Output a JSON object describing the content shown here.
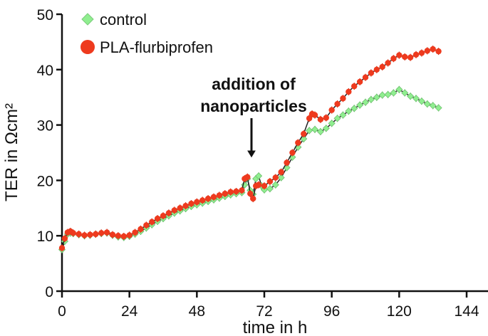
{
  "chart_data": {
    "type": "line",
    "xlabel": "time in h",
    "ylabel": "TER in Ωcm²",
    "xlim": [
      0,
      144
    ],
    "ylim": [
      0,
      50
    ],
    "x_ticks": [
      0,
      24,
      48,
      72,
      96,
      120,
      144
    ],
    "y_ticks": [
      0,
      10,
      20,
      30,
      40,
      50
    ],
    "grid": false,
    "legend_position": "top-left",
    "annotation": {
      "lines": [
        "addition of",
        "nanoparticles"
      ],
      "points_to_x": 66,
      "points_to_y": 24
    },
    "series": [
      {
        "name": "control",
        "marker": "diamond",
        "color": "#90ee90",
        "points": [
          [
            0,
            7.5
          ],
          [
            1,
            9
          ],
          [
            2,
            10.3
          ],
          [
            3,
            10.5
          ],
          [
            4,
            10.4
          ],
          [
            6,
            10.2
          ],
          [
            8,
            10.0
          ],
          [
            10,
            10.1
          ],
          [
            12,
            10.3
          ],
          [
            14,
            10.4
          ],
          [
            16,
            10.5
          ],
          [
            18,
            10.1
          ],
          [
            20,
            9.8
          ],
          [
            22,
            9.7
          ],
          [
            24,
            9.9
          ],
          [
            26,
            10.3
          ],
          [
            28,
            10.8
          ],
          [
            30,
            11.4
          ],
          [
            32,
            12.0
          ],
          [
            34,
            12.6
          ],
          [
            36,
            13.1
          ],
          [
            38,
            13.6
          ],
          [
            40,
            14.1
          ],
          [
            42,
            14.5
          ],
          [
            44,
            14.9
          ],
          [
            46,
            15.3
          ],
          [
            48,
            15.6
          ],
          [
            50,
            15.9
          ],
          [
            52,
            16.2
          ],
          [
            54,
            16.5
          ],
          [
            56,
            16.8
          ],
          [
            58,
            17.1
          ],
          [
            60,
            17.4
          ],
          [
            62,
            17.6
          ],
          [
            64,
            17.8
          ],
          [
            65,
            19.2
          ],
          [
            66,
            20.3
          ],
          [
            67,
            18.2
          ],
          [
            68,
            17.5
          ],
          [
            69,
            20.3
          ],
          [
            70,
            20.8
          ],
          [
            71,
            19.0
          ],
          [
            72,
            18.3
          ],
          [
            74,
            18.5
          ],
          [
            76,
            19.2
          ],
          [
            78,
            20.5
          ],
          [
            80,
            22.3
          ],
          [
            82,
            24.2
          ],
          [
            84,
            26.0
          ],
          [
            86,
            27.5
          ],
          [
            88,
            29.0
          ],
          [
            90,
            29.2
          ],
          [
            92,
            28.8
          ],
          [
            94,
            29.4
          ],
          [
            96,
            30.3
          ],
          [
            98,
            31.2
          ],
          [
            100,
            31.8
          ],
          [
            102,
            32.5
          ],
          [
            104,
            33.0
          ],
          [
            106,
            33.6
          ],
          [
            108,
            34.1
          ],
          [
            110,
            34.6
          ],
          [
            112,
            35.0
          ],
          [
            114,
            35.4
          ],
          [
            116,
            35.5
          ],
          [
            118,
            35.8
          ],
          [
            120,
            36.4
          ],
          [
            122,
            35.8
          ],
          [
            124,
            35.2
          ],
          [
            126,
            34.8
          ],
          [
            128,
            34.3
          ],
          [
            130,
            33.8
          ],
          [
            132,
            33.5
          ],
          [
            134,
            33.1
          ]
        ]
      },
      {
        "name": "PLA-flurbiprofen",
        "marker": "circle",
        "color": "#ee3a1e",
        "points": [
          [
            0,
            7.8
          ],
          [
            1,
            9.5
          ],
          [
            2,
            10.6
          ],
          [
            3,
            10.8
          ],
          [
            4,
            10.5
          ],
          [
            6,
            10.3
          ],
          [
            8,
            10.1
          ],
          [
            10,
            10.2
          ],
          [
            12,
            10.3
          ],
          [
            14,
            10.5
          ],
          [
            16,
            10.6
          ],
          [
            18,
            10.2
          ],
          [
            20,
            10.0
          ],
          [
            22,
            9.9
          ],
          [
            24,
            10.1
          ],
          [
            26,
            10.6
          ],
          [
            28,
            11.2
          ],
          [
            30,
            11.9
          ],
          [
            32,
            12.5
          ],
          [
            34,
            13.1
          ],
          [
            36,
            13.6
          ],
          [
            38,
            14.1
          ],
          [
            40,
            14.6
          ],
          [
            42,
            15.0
          ],
          [
            44,
            15.4
          ],
          [
            46,
            15.8
          ],
          [
            48,
            16.1
          ],
          [
            50,
            16.4
          ],
          [
            52,
            16.7
          ],
          [
            54,
            17.0
          ],
          [
            56,
            17.3
          ],
          [
            58,
            17.6
          ],
          [
            60,
            17.9
          ],
          [
            62,
            18.0
          ],
          [
            64,
            18.2
          ],
          [
            65,
            20.3
          ],
          [
            66,
            20.6
          ],
          [
            67,
            17.6
          ],
          [
            68,
            16.7
          ],
          [
            69,
            19.0
          ],
          [
            70,
            19.2
          ],
          [
            72,
            19.0
          ],
          [
            74,
            19.8
          ],
          [
            76,
            20.5
          ],
          [
            78,
            21.5
          ],
          [
            80,
            23.2
          ],
          [
            82,
            25.0
          ],
          [
            84,
            26.8
          ],
          [
            86,
            28.4
          ],
          [
            88,
            31.2
          ],
          [
            89,
            32.0
          ],
          [
            90,
            31.8
          ],
          [
            92,
            31.0
          ],
          [
            94,
            31.3
          ],
          [
            96,
            32.7
          ],
          [
            98,
            33.8
          ],
          [
            100,
            34.8
          ],
          [
            102,
            36.0
          ],
          [
            104,
            37.0
          ],
          [
            106,
            37.8
          ],
          [
            108,
            38.6
          ],
          [
            110,
            39.4
          ],
          [
            112,
            40.0
          ],
          [
            114,
            40.5
          ],
          [
            116,
            41.2
          ],
          [
            118,
            42.0
          ],
          [
            120,
            42.6
          ],
          [
            122,
            42.3
          ],
          [
            124,
            42.2
          ],
          [
            126,
            42.7
          ],
          [
            128,
            43.0
          ],
          [
            130,
            43.4
          ],
          [
            132,
            43.7
          ],
          [
            134,
            43.3
          ]
        ]
      }
    ]
  }
}
